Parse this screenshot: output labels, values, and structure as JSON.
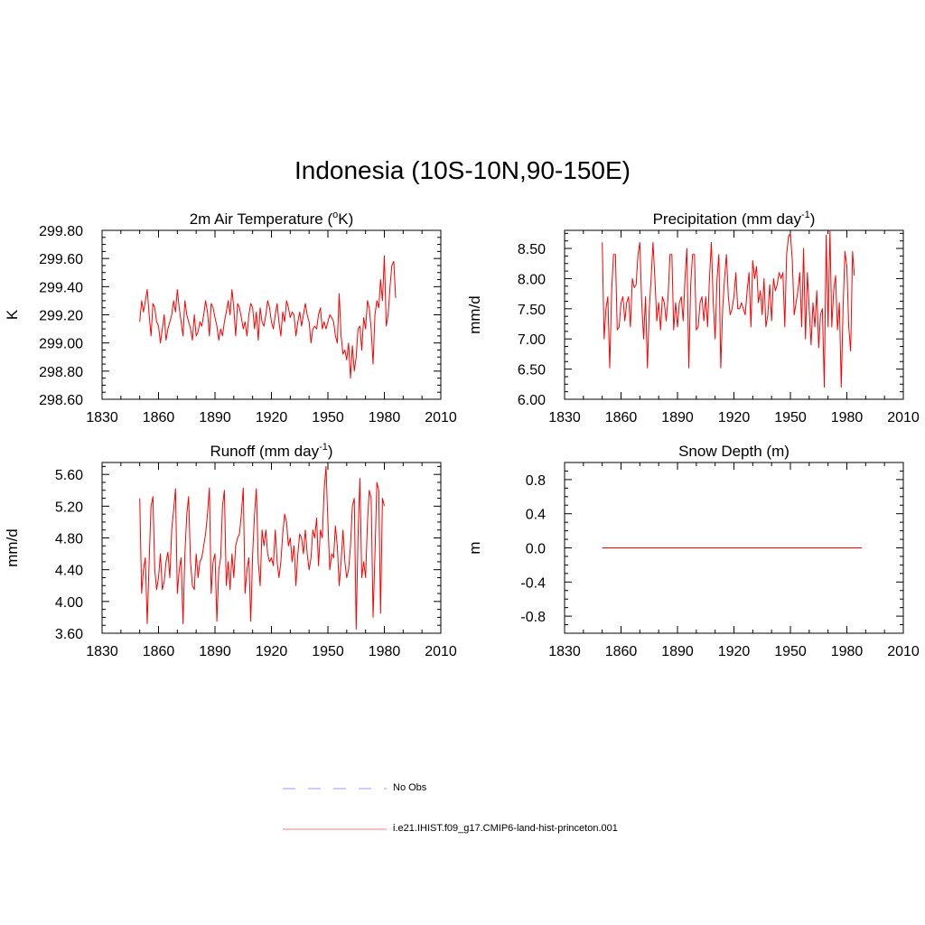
{
  "title": "Indonesia (10S-10N,90-150E)",
  "colors": {
    "model": "#ff0000",
    "obs": "#9a9aff",
    "axis": "#000000"
  },
  "legend": {
    "obs_label": "No Obs",
    "model_label": "i.e21.IHIST.f09_g17.CMIP6-land-hist-princeton.001"
  },
  "chart_data": [
    {
      "type": "line",
      "title": "2m Air Temperature (ºK)",
      "title_main": "2m Air Temperature (",
      "title_sup": "o",
      "title_tail": "K)",
      "ylabel": "K",
      "xlim": [
        1830,
        2010
      ],
      "ylim": [
        298.6,
        299.8
      ],
      "xticks": [
        "1830",
        "1860",
        "1890",
        "1920",
        "1950",
        "1980",
        "2010"
      ],
      "yticks": [
        "298.60",
        "298.80",
        "299.00",
        "299.20",
        "299.40",
        "299.60",
        "299.80"
      ],
      "series": [
        {
          "x_start": 1850,
          "x_step": 1,
          "values": [
            299.15,
            299.3,
            299.22,
            299.3,
            299.38,
            299.2,
            299.05,
            299.28,
            299.25,
            299.15,
            299.12,
            299.0,
            299.1,
            299.2,
            299.02,
            299.1,
            299.15,
            299.2,
            299.3,
            299.22,
            299.38,
            299.25,
            299.15,
            299.05,
            299.3,
            299.2,
            299.15,
            299.1,
            299.02,
            299.2,
            299.05,
            299.08,
            299.15,
            299.12,
            299.2,
            299.3,
            299.22,
            299.05,
            299.28,
            299.25,
            299.18,
            299.12,
            299.02,
            299.1,
            299.05,
            299.15,
            299.22,
            299.3,
            299.2,
            299.38,
            299.25,
            299.05,
            299.28,
            299.25,
            299.18,
            299.1,
            299.15,
            299.05,
            299.2,
            299.28,
            299.25,
            299.1,
            299.22,
            299.02,
            299.25,
            299.15,
            299.12,
            299.2,
            299.3,
            299.25,
            299.15,
            299.1,
            299.2,
            299.28,
            299.15,
            299.05,
            299.22,
            299.15,
            299.3,
            299.25,
            299.18,
            299.22,
            299.2,
            299.05,
            299.15,
            299.22,
            299.12,
            299.2,
            299.28,
            299.2,
            299.15,
            299.0,
            299.1,
            299.12,
            299.1,
            299.2,
            299.25,
            299.1,
            299.15,
            299.1,
            299.15,
            299.2,
            299.18,
            299.15,
            299.05,
            299.0,
            299.35,
            299.05,
            298.92,
            298.95,
            298.88,
            299.0,
            298.75,
            298.98,
            298.8,
            298.9,
            299.1,
            299.12,
            298.95,
            299.18,
            299.1,
            299.3,
            299.25,
            299.1,
            298.85,
            299.2,
            299.3,
            299.25,
            299.45,
            299.3,
            299.62,
            299.12,
            299.2,
            299.4,
            299.55,
            299.58,
            299.32
          ]
        }
      ]
    },
    {
      "type": "line",
      "title": "Precipitation (mm day-1)",
      "title_main": "Precipitation (mm day",
      "title_sup": "-1",
      "title_tail": ")",
      "ylabel": "mm/d",
      "xlim": [
        1830,
        2010
      ],
      "ylim": [
        6.0,
        8.8
      ],
      "xticks": [
        "1830",
        "1860",
        "1890",
        "1920",
        "1950",
        "1980",
        "2010"
      ],
      "yticks": [
        "6.00",
        "6.50",
        "7.00",
        "7.50",
        "8.00",
        "8.50"
      ],
      "series": [
        {
          "x_start": 1850,
          "x_step": 1,
          "values": [
            8.6,
            7.0,
            7.5,
            7.7,
            6.52,
            7.8,
            8.4,
            8.4,
            7.15,
            7.2,
            7.6,
            7.7,
            7.3,
            7.6,
            7.7,
            7.2,
            8.0,
            7.85,
            7.9,
            8.4,
            8.6,
            7.6,
            7.0,
            7.7,
            6.52,
            7.5,
            8.0,
            8.6,
            8.0,
            7.3,
            7.6,
            7.15,
            7.7,
            7.6,
            7.3,
            7.7,
            8.4,
            8.4,
            7.15,
            7.6,
            7.2,
            7.6,
            7.7,
            7.3,
            8.0,
            8.5,
            6.52,
            7.9,
            8.4,
            8.4,
            7.15,
            7.2,
            7.6,
            7.7,
            7.3,
            7.7,
            7.2,
            8.0,
            8.6,
            7.6,
            7.0,
            8.0,
            8.4,
            6.52,
            7.5,
            8.0,
            8.4,
            7.7,
            7.4,
            7.5,
            7.7,
            8.1,
            7.5,
            7.5,
            7.6,
            7.5,
            7.4,
            7.8,
            8.1,
            7.2,
            8.3,
            8.0,
            8.2,
            7.6,
            7.8,
            7.4,
            8.0,
            7.2,
            7.4,
            7.9,
            7.3,
            8.0,
            7.8,
            7.9,
            8.1,
            8.0,
            8.1,
            7.2,
            8.4,
            8.7,
            8.75,
            8.3,
            7.4,
            7.6,
            7.8,
            8.1,
            7.2,
            8.5,
            7.0,
            8.1,
            7.5,
            6.9,
            7.6,
            7.2,
            7.8,
            6.85,
            7.4,
            7.5,
            6.2,
            8.72,
            7.2,
            8.8,
            7.2,
            7.8,
            8.05,
            7.15,
            7.6,
            6.2,
            7.5,
            8.45,
            8.2,
            7.2,
            6.8,
            8.45,
            8.05
          ]
        }
      ]
    },
    {
      "type": "line",
      "title": "Runoff (mm day-1)",
      "title_main": "Runoff (mm day",
      "title_sup": "-1",
      "title_tail": ")",
      "ylabel": "mm/d",
      "xlim": [
        1830,
        2010
      ],
      "ylim": [
        3.6,
        5.75
      ],
      "xticks": [
        "1830",
        "1860",
        "1890",
        "1920",
        "1950",
        "1980",
        "2010"
      ],
      "yticks": [
        "3.60",
        "4.00",
        "4.40",
        "4.80",
        "5.20",
        "5.60"
      ],
      "series": [
        {
          "x_start": 1850,
          "x_step": 1,
          "values": [
            5.3,
            4.1,
            4.4,
            4.55,
            3.72,
            4.5,
            5.2,
            5.32,
            4.4,
            4.15,
            4.3,
            4.6,
            4.15,
            4.25,
            4.5,
            4.62,
            4.3,
            4.9,
            5.15,
            5.42,
            4.1,
            4.4,
            4.55,
            3.72,
            4.6,
            5.1,
            5.32,
            4.5,
            4.2,
            4.15,
            4.6,
            4.3,
            4.5,
            4.55,
            4.7,
            4.85,
            5.1,
            5.43,
            4.1,
            4.5,
            4.6,
            3.75,
            4.4,
            4.55,
            5.2,
            5.4,
            4.2,
            4.5,
            4.15,
            4.6,
            4.3,
            4.7,
            4.8,
            4.85,
            5.1,
            5.43,
            4.1,
            4.4,
            4.55,
            3.75,
            4.6,
            5.1,
            5.42,
            4.5,
            4.2,
            4.9,
            4.7,
            4.9,
            4.6,
            4.5,
            4.55,
            4.45,
            4.9,
            4.5,
            4.3,
            4.5,
            4.85,
            5.1,
            5.0,
            4.7,
            4.8,
            4.5,
            4.7,
            4.2,
            4.6,
            4.85,
            4.8,
            4.6,
            4.9,
            4.6,
            4.4,
            4.55,
            4.9,
            4.8,
            5.05,
            4.45,
            4.9,
            4.8,
            5.4,
            5.7,
            5.0,
            4.4,
            4.6,
            4.55,
            4.95,
            4.7,
            4.2,
            4.5,
            4.9,
            4.5,
            4.3,
            4.4,
            4.7,
            5.2,
            5.3,
            3.65,
            4.8,
            5.55,
            4.3,
            4.5,
            4.3,
            5.0,
            5.4,
            5.3,
            3.8,
            4.6,
            5.5,
            5.4,
            3.85,
            5.3,
            5.2
          ]
        }
      ]
    },
    {
      "type": "line",
      "title": "Snow Depth (m)",
      "title_main": "Snow Depth (m)",
      "title_sup": "",
      "title_tail": "",
      "ylabel": "m",
      "xlim": [
        1830,
        2010
      ],
      "ylim": [
        -1.0,
        1.0
      ],
      "xticks": [
        "1830",
        "1860",
        "1890",
        "1920",
        "1950",
        "1980",
        "2010"
      ],
      "yticks": [
        "-0.8",
        "-0.4",
        "0.0",
        "0.4",
        "0.8"
      ],
      "series": [
        {
          "x_start": 1850,
          "x_step": 1,
          "values_constant": 0.0,
          "x_end": 1988
        }
      ]
    }
  ]
}
